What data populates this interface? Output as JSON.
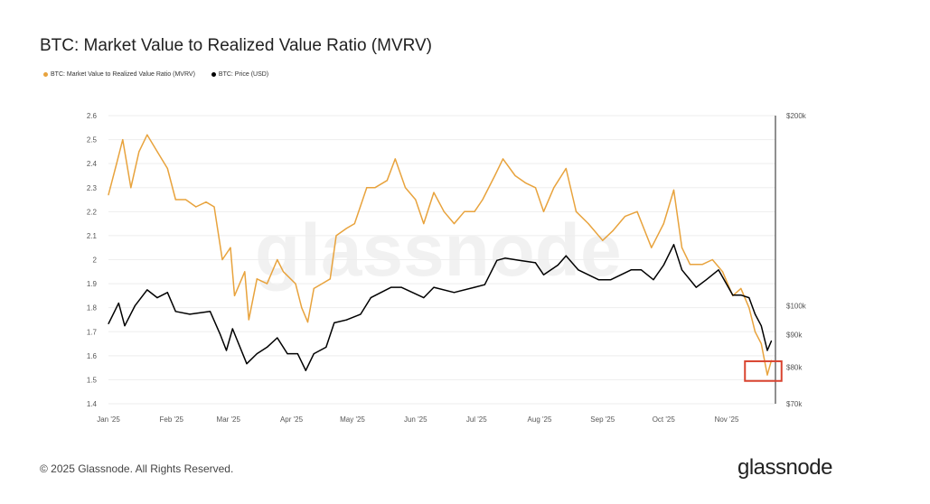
{
  "chart_data": {
    "type": "line",
    "title": "BTC: Market Value to Realized Value Ratio (MVRV)",
    "watermark": "glassnode",
    "grid": true,
    "legend_placement": "top-left",
    "x_ticks": [
      "Jan '25",
      "Feb '25",
      "Mar '25",
      "Apr '25",
      "May '25",
      "Jun '25",
      "Jul '25",
      "Aug '25",
      "Sep '25",
      "Oct '25",
      "Nov '25"
    ],
    "x_tick_dates": [
      "2025-01-01",
      "2025-02-01",
      "2025-03-01",
      "2025-04-01",
      "2025-05-01",
      "2025-06-01",
      "2025-07-01",
      "2025-08-01",
      "2025-09-01",
      "2025-10-01",
      "2025-11-01"
    ],
    "xlim": [
      "2025-01-01",
      "2025-11-25"
    ],
    "y_left": {
      "ticks": [
        "2.6",
        "2.5",
        "2.4",
        "2.3",
        "2.2",
        "2.1",
        "2",
        "1.9",
        "1.8",
        "1.7",
        "1.6",
        "1.5",
        "1.4"
      ],
      "ylim": [
        1.4,
        2.6
      ]
    },
    "y_right": {
      "scale": "log",
      "ticks": [
        "$200k",
        "$100k",
        "$90k",
        "$80k",
        "$70k"
      ],
      "tick_values": [
        200000,
        100000,
        90000,
        80000,
        70000
      ],
      "ylim": [
        70000,
        200000
      ]
    },
    "series": [
      {
        "name": "BTC: Market Value to Realized Value Ratio (MVRV)",
        "axis": "left",
        "color": "#e8a33d",
        "dates": [
          "2025-01-01",
          "2025-01-05",
          "2025-01-08",
          "2025-01-12",
          "2025-01-16",
          "2025-01-20",
          "2025-01-25",
          "2025-01-30",
          "2025-02-03",
          "2025-02-08",
          "2025-02-13",
          "2025-02-18",
          "2025-02-22",
          "2025-02-26",
          "2025-03-02",
          "2025-03-04",
          "2025-03-09",
          "2025-03-11",
          "2025-03-15",
          "2025-03-20",
          "2025-03-25",
          "2025-03-28",
          "2025-04-03",
          "2025-04-06",
          "2025-04-09",
          "2025-04-12",
          "2025-04-16",
          "2025-04-20",
          "2025-04-23",
          "2025-04-28",
          "2025-05-02",
          "2025-05-08",
          "2025-05-12",
          "2025-05-18",
          "2025-05-22",
          "2025-05-27",
          "2025-06-01",
          "2025-06-05",
          "2025-06-10",
          "2025-06-15",
          "2025-06-20",
          "2025-06-25",
          "2025-06-30",
          "2025-07-04",
          "2025-07-10",
          "2025-07-14",
          "2025-07-20",
          "2025-07-25",
          "2025-07-30",
          "2025-08-03",
          "2025-08-08",
          "2025-08-14",
          "2025-08-19",
          "2025-08-25",
          "2025-09-01",
          "2025-09-06",
          "2025-09-12",
          "2025-09-18",
          "2025-09-25",
          "2025-10-01",
          "2025-10-06",
          "2025-10-10",
          "2025-10-14",
          "2025-10-20",
          "2025-10-25",
          "2025-10-30",
          "2025-11-04",
          "2025-11-08",
          "2025-11-12",
          "2025-11-15",
          "2025-11-18",
          "2025-11-21",
          "2025-11-23"
        ],
        "values": [
          2.27,
          2.4,
          2.5,
          2.3,
          2.45,
          2.52,
          2.45,
          2.38,
          2.25,
          2.25,
          2.22,
          2.24,
          2.22,
          2.0,
          2.05,
          1.85,
          1.95,
          1.75,
          1.92,
          1.9,
          2.0,
          1.95,
          1.9,
          1.8,
          1.74,
          1.88,
          1.9,
          1.92,
          2.1,
          2.13,
          2.15,
          2.3,
          2.3,
          2.33,
          2.42,
          2.3,
          2.25,
          2.15,
          2.28,
          2.2,
          2.15,
          2.2,
          2.2,
          2.25,
          2.35,
          2.42,
          2.35,
          2.32,
          2.3,
          2.2,
          2.3,
          2.38,
          2.2,
          2.15,
          2.08,
          2.12,
          2.18,
          2.2,
          2.05,
          2.15,
          2.29,
          2.05,
          1.98,
          1.98,
          2.0,
          1.95,
          1.85,
          1.88,
          1.8,
          1.7,
          1.65,
          1.52,
          1.58
        ]
      },
      {
        "name": "BTC: Price (USD)",
        "axis": "right",
        "color": "#000000",
        "dates": [
          "2025-01-01",
          "2025-01-06",
          "2025-01-09",
          "2025-01-14",
          "2025-01-20",
          "2025-01-25",
          "2025-01-30",
          "2025-02-03",
          "2025-02-10",
          "2025-02-20",
          "2025-02-25",
          "2025-02-28",
          "2025-03-03",
          "2025-03-10",
          "2025-03-15",
          "2025-03-20",
          "2025-03-25",
          "2025-03-30",
          "2025-04-04",
          "2025-04-08",
          "2025-04-12",
          "2025-04-18",
          "2025-04-22",
          "2025-04-28",
          "2025-05-05",
          "2025-05-10",
          "2025-05-20",
          "2025-05-25",
          "2025-06-05",
          "2025-06-10",
          "2025-06-20",
          "2025-06-30",
          "2025-07-05",
          "2025-07-11",
          "2025-07-15",
          "2025-07-22",
          "2025-07-30",
          "2025-08-03",
          "2025-08-10",
          "2025-08-14",
          "2025-08-20",
          "2025-08-30",
          "2025-09-05",
          "2025-09-15",
          "2025-09-20",
          "2025-09-26",
          "2025-10-01",
          "2025-10-06",
          "2025-10-10",
          "2025-10-17",
          "2025-10-22",
          "2025-10-28",
          "2025-11-04",
          "2025-11-08",
          "2025-11-12",
          "2025-11-15",
          "2025-11-18",
          "2025-11-21",
          "2025-11-23"
        ],
        "values": [
          93700,
          101000,
          93000,
          100000,
          106000,
          103000,
          105000,
          98000,
          97000,
          98000,
          90000,
          85000,
          92000,
          81000,
          84000,
          86000,
          89000,
          84000,
          84000,
          79000,
          84000,
          86000,
          94000,
          95000,
          97000,
          103000,
          107000,
          107000,
          103000,
          107000,
          105000,
          107000,
          108000,
          118000,
          119000,
          118000,
          117000,
          112000,
          116000,
          120000,
          114000,
          110000,
          110000,
          114000,
          114000,
          110000,
          116000,
          125000,
          114000,
          107000,
          110000,
          114000,
          104000,
          104000,
          103000,
          97000,
          93000,
          85000,
          88000
        ]
      }
    ],
    "annotation": {
      "type": "highlight-box",
      "color": "#d9432f",
      "x_range": [
        "2025-11-10",
        "2025-11-28"
      ],
      "y_range": [
        1.495,
        1.577
      ]
    }
  },
  "footer": {
    "copyright": "© 2025 Glassnode. All Rights Reserved.",
    "brand": "glassnode"
  }
}
